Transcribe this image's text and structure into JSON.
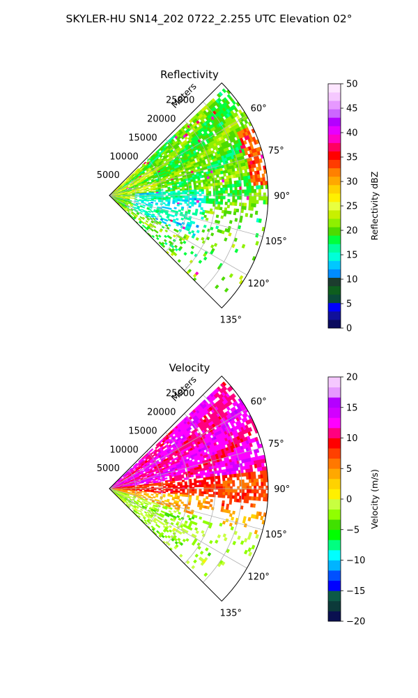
{
  "figure": {
    "suptitle": "SKYLER-HU  SN14_202  0722_2.255 UTC Elevation 02°"
  },
  "chart_data": [
    {
      "type": "heatmap",
      "subtype": "radar-ppi-sector",
      "title": "Reflectivity",
      "range_axis_label": "Meters",
      "range_ticks": [
        5000,
        10000,
        15000,
        20000,
        25000
      ],
      "range_tick_labels": [
        "5000",
        "10000",
        "15000",
        "20000",
        "25000"
      ],
      "range_max": 30000,
      "azimuth_range_deg": [
        45,
        135
      ],
      "azimuth_ticks": [
        60,
        75,
        90,
        105,
        120,
        135
      ],
      "azimuth_tick_labels": [
        "60°",
        "75°",
        "90°",
        "105°",
        "120°",
        "135°"
      ],
      "grid": true,
      "colorbar": {
        "label": "Reflectivity dBZ",
        "vmin": 0,
        "vmax": 50,
        "ticks": [
          0,
          5,
          10,
          15,
          20,
          25,
          30,
          35,
          40,
          45,
          50
        ],
        "tick_labels": [
          "0",
          "5",
          "10",
          "15",
          "20",
          "25",
          "30",
          "35",
          "40",
          "45",
          "50"
        ],
        "colormap": "NWS-style reflectivity",
        "colors": [
          "#0a0a5e",
          "#10109a",
          "#0000ff",
          "#0a4a3a",
          "#0e5e1e",
          "#1c3c2e",
          "#008cff",
          "#00c8ff",
          "#00ffd8",
          "#00ff9c",
          "#00ff3c",
          "#4cdb00",
          "#8ef000",
          "#c8f000",
          "#e8ff40",
          "#fff000",
          "#ffd200",
          "#ffa800",
          "#ff8000",
          "#ff3c00",
          "#ff0000",
          "#ff0060",
          "#ff00c8",
          "#e600ff",
          "#b400ff",
          "#cc66ff",
          "#e699ff",
          "#f5c8ff",
          "#fde6ff"
        ]
      },
      "field_description": "Mostly 15–28 dBZ echoes, 30–40 dBZ cores near 75–90° at far range"
    },
    {
      "type": "heatmap",
      "subtype": "radar-ppi-sector",
      "title": "Velocity",
      "range_axis_label": "Meters",
      "range_ticks": [
        5000,
        10000,
        15000,
        20000,
        25000
      ],
      "range_tick_labels": [
        "5000",
        "10000",
        "15000",
        "20000",
        "25000"
      ],
      "range_max": 30000,
      "azimuth_range_deg": [
        45,
        135
      ],
      "azimuth_ticks": [
        60,
        75,
        90,
        105,
        120,
        135
      ],
      "azimuth_tick_labels": [
        "60°",
        "75°",
        "90°",
        "105°",
        "120°",
        "135°"
      ],
      "grid": true,
      "colorbar": {
        "label": "Velocity (m/s)",
        "vmin": -20,
        "vmax": 20,
        "ticks": [
          -20,
          -15,
          -10,
          -5,
          0,
          5,
          10,
          15,
          20
        ],
        "tick_labels": [
          "−20",
          "−15",
          "−10",
          "−5",
          "0",
          "5",
          "10",
          "15",
          "20"
        ],
        "colormap": "radial velocity",
        "colors": [
          "#0a1050",
          "#0c3a3a",
          "#0c5a46",
          "#0000ff",
          "#0050ff",
          "#00b4ff",
          "#00ffff",
          "#00ff80",
          "#00ff00",
          "#40e000",
          "#90ff00",
          "#c8ff40",
          "#fff000",
          "#ffd200",
          "#ffa800",
          "#ff7800",
          "#ff4000",
          "#ff0000",
          "#ff0080",
          "#ff00ff",
          "#d200ff",
          "#b400ff",
          "#e699ff",
          "#f5c8ff"
        ]
      },
      "field_description": "Positive velocities (10–15 m/s) north of 90°, ~10 m/s near 90°, 0–5 m/s and slightly negative south of 90°"
    }
  ]
}
